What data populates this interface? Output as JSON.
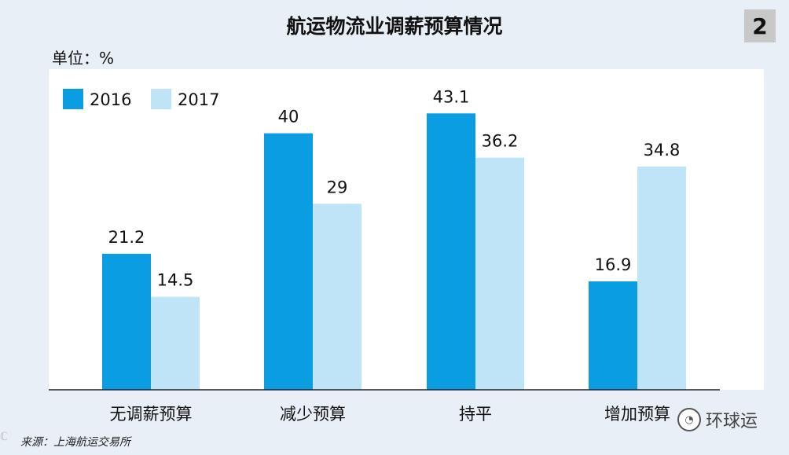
{
  "chart_data": {
    "type": "bar",
    "title": "航运物流业调薪预算情况",
    "badge": "2",
    "unit_label": "单位：%",
    "categories": [
      "无调薪预算",
      "减少预算",
      "持平",
      "增加预算"
    ],
    "series": [
      {
        "name": "2016",
        "color": "#0a9de2",
        "values": [
          21.2,
          40,
          43.1,
          16.9
        ],
        "labels": [
          "21.2",
          "40",
          "43.1",
          "16.9"
        ]
      },
      {
        "name": "2017",
        "color": "#bfe3f7",
        "values": [
          14.5,
          29,
          36.2,
          34.8
        ],
        "labels": [
          "14.5",
          "29",
          "36.2",
          "34.8"
        ]
      }
    ],
    "ylim": [
      0,
      50
    ],
    "xlabel": "",
    "ylabel": "",
    "legend_position": "top-left",
    "grid": false
  },
  "source": "来源：上海航运交易所",
  "brand": {
    "name": "环球运",
    "icon": "wechat-icon",
    "icon_glyph": "◔"
  },
  "corner_mark": "ℂ"
}
